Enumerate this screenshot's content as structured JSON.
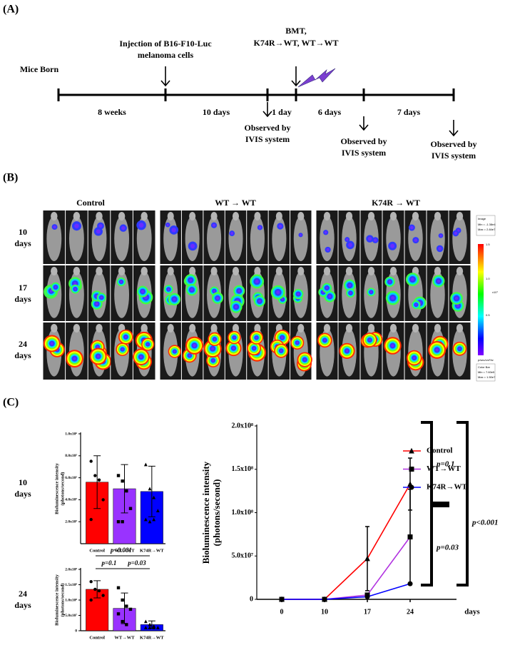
{
  "panels": [
    "(A)",
    "(B)",
    "(C)"
  ],
  "timeline": {
    "mice_born": "Mice Born",
    "injection": [
      "Injection of  B16-F10-Luc",
      "melanoma cells"
    ],
    "bmt": [
      "BMT,",
      "K74R→WT, WT→WT"
    ],
    "intervals": [
      "8 weeks",
      "10 days",
      "1 day",
      "6 days",
      "7 days"
    ],
    "observations": [
      [
        "Observed by",
        "IVIS system"
      ],
      [
        "Observed by",
        "IVIS system"
      ],
      [
        "Observed by",
        "IVIS system"
      ]
    ]
  },
  "imaging": {
    "groups": [
      "Control",
      "WT → WT",
      "K74R → WT"
    ],
    "rows": [
      [
        "10",
        "days"
      ],
      [
        "17",
        "days"
      ],
      [
        "24",
        "days"
      ]
    ],
    "colorbar": {
      "image": [
        "Image",
        "Min = -1.38e4",
        "Max = 2.84e7"
      ],
      "ticks": [
        "1.5",
        "1.0",
        "0.5"
      ],
      "unit": "x10⁷",
      "scale": "p/sec/cm²/sr",
      "bar": [
        "Color Bar",
        "Min = 7.60e5",
        "Max = 1.50e7"
      ]
    }
  },
  "chart_data": [
    {
      "type": "bar",
      "row_label": [
        "10",
        "days"
      ],
      "y_label": [
        "Bioluminescence intensity",
        "(photons/second)"
      ],
      "categories": [
        "Control",
        "WT→WT",
        "K74R→WT"
      ],
      "values": [
        560000,
        500000,
        475000
      ],
      "errors": [
        240000,
        220000,
        230000
      ],
      "colors": [
        "#ff0000",
        "#9933ff",
        "#0000ff"
      ],
      "markers": [
        "circle",
        "square",
        "triangle"
      ],
      "points": [
        [
          750000,
          620000,
          580000,
          400000,
          220000
        ],
        [
          620000,
          570000,
          480000,
          320000,
          200000,
          200000
        ],
        [
          720000,
          500000,
          420000,
          300000,
          220000,
          200000,
          220000
        ]
      ],
      "ylim": [
        0,
        1000000
      ],
      "yticks": [
        {
          "value": 200000,
          "label": "2.0x10⁵"
        },
        {
          "value": 400000,
          "label": "4.0x10⁵"
        },
        {
          "value": 600000,
          "label": "6.0x10⁵"
        },
        {
          "value": 800000,
          "label": "8.0x10⁵"
        },
        {
          "value": 1000000,
          "label": "1.0x10⁶"
        }
      ]
    },
    {
      "type": "bar",
      "row_label": [
        "24",
        "days"
      ],
      "y_label": [
        "Bioluminescence intensity",
        "(photons/second)"
      ],
      "categories": [
        "Control",
        "WT→WT",
        "K74R→WT"
      ],
      "values": [
        135000000,
        73000000,
        20000000
      ],
      "errors": [
        28000000,
        50000000,
        12000000
      ],
      "colors": [
        "#ff0000",
        "#9933ff",
        "#0000ff"
      ],
      "markers": [
        "circle",
        "square",
        "triangle"
      ],
      "points": [
        [
          160000000,
          135000000,
          130000000,
          115000000,
          100000000
        ],
        [
          140000000,
          100000000,
          80000000,
          70000000,
          55000000,
          30000000,
          20000000
        ],
        [
          30000000,
          20000000,
          15000000,
          10000000,
          10000000,
          10000000,
          10000000
        ]
      ],
      "annotations": [
        "p<0.001",
        "p=0.1",
        "p=0.03"
      ],
      "ylim": [
        0,
        200000000
      ],
      "yticks": [
        0,
        {
          "value": 50000000,
          "label": "5.0x10⁷"
        },
        {
          "value": 100000000,
          "label": "1.0x10⁸"
        },
        {
          "value": 150000000,
          "label": "1.5x10⁸"
        },
        {
          "value": 200000000,
          "label": "2.0x10⁸"
        }
      ]
    },
    {
      "type": "line",
      "y_label": [
        "Bioluminescence intensity",
        "(photons/second)"
      ],
      "x_label": "days",
      "categories": [
        "0",
        "10",
        "17",
        "24"
      ],
      "series": [
        {
          "name": "Control",
          "color": "#ff0000",
          "marker": "triangle",
          "values": [
            0,
            0,
            47000000,
            133000000
          ],
          "errors": [
            null,
            null,
            37000000,
            30000000
          ]
        },
        {
          "name": "WT→WT",
          "color": "#b030e0",
          "marker": "square",
          "values": [
            0,
            0,
            5000000,
            72000000
          ],
          "errors": [
            null,
            null,
            null,
            55000000
          ]
        },
        {
          "name": "K74R→WT",
          "color": "#0000ff",
          "marker": "circle",
          "values": [
            0,
            0,
            3000000,
            18000000
          ],
          "errors": [
            null,
            null,
            null,
            null
          ]
        }
      ],
      "annotations": [
        "p=0.1",
        "p=0.03",
        "p<0.001"
      ],
      "ylim": [
        0,
        200000000
      ],
      "yticks": [
        0,
        {
          "value": 50000000,
          "label": "5.0x10⁷"
        },
        {
          "value": 100000000,
          "label": "1.0x10⁸"
        },
        {
          "value": 150000000,
          "label": "1.5x10⁸"
        },
        {
          "value": 200000000,
          "label": "2.0x10⁸"
        }
      ]
    }
  ]
}
